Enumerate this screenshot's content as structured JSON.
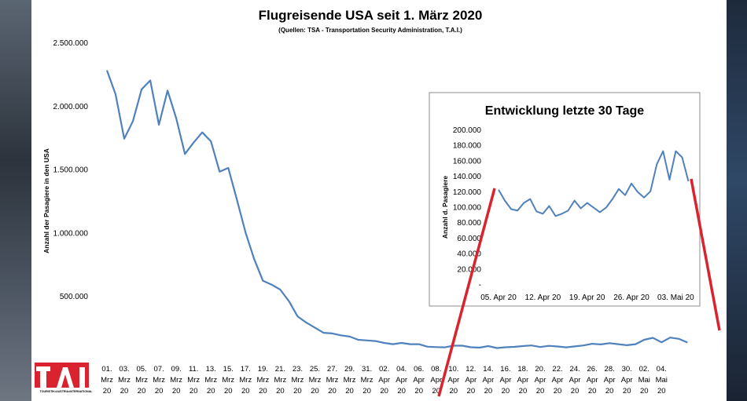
{
  "colors": {
    "line": "#4f81bd",
    "connector": "#d9232e",
    "logo": "#d9232e"
  },
  "logo": {
    "text": "TOURISTIK•AUSTRIA•INTERNATIONAL",
    "icon": "tai-logo"
  },
  "chart_data": [
    {
      "type": "line",
      "title": "Flugreisende USA seit 1. März 2020",
      "subtitle": "(Quellen: TSA - Transportation Security Administration, T.A.I.)",
      "ylabel": "Anzahl der Pasagiere  in den USA",
      "xlabel": "",
      "ylim": [
        0,
        2500000
      ],
      "yticks": [
        500000,
        1000000,
        1500000,
        2000000,
        2500000
      ],
      "ytick_labels": [
        "500.000",
        "1.000.000",
        "1.500.000",
        "2.000.000",
        "2.500.000"
      ],
      "x_tick_labels": [
        [
          "01.",
          "Mrz",
          "20"
        ],
        [
          "03.",
          "Mrz",
          "20"
        ],
        [
          "05.",
          "Mrz",
          "20"
        ],
        [
          "07.",
          "Mrz",
          "20"
        ],
        [
          "09.",
          "Mrz",
          "20"
        ],
        [
          "11.",
          "Mrz",
          "20"
        ],
        [
          "13.",
          "Mrz",
          "20"
        ],
        [
          "15.",
          "Mrz",
          "20"
        ],
        [
          "17.",
          "Mrz",
          "20"
        ],
        [
          "19.",
          "Mrz",
          "20"
        ],
        [
          "21.",
          "Mrz",
          "20"
        ],
        [
          "23.",
          "Mrz",
          "20"
        ],
        [
          "25.",
          "Mrz",
          "20"
        ],
        [
          "27.",
          "Mrz",
          "20"
        ],
        [
          "29.",
          "Mrz",
          "20"
        ],
        [
          "31.",
          "Mrz",
          "20"
        ],
        [
          "02.",
          "Apr",
          "20"
        ],
        [
          "04.",
          "Apr",
          "20"
        ],
        [
          "06.",
          "Apr",
          "20"
        ],
        [
          "08.",
          "Apr",
          "20"
        ],
        [
          "10.",
          "Apr",
          "20"
        ],
        [
          "12.",
          "Apr",
          "20"
        ],
        [
          "14.",
          "Apr",
          "20"
        ],
        [
          "16.",
          "Apr",
          "20"
        ],
        [
          "18.",
          "Apr",
          "20"
        ],
        [
          "20.",
          "Apr",
          "20"
        ],
        [
          "22.",
          "Apr",
          "20"
        ],
        [
          "24.",
          "Apr",
          "20"
        ],
        [
          "26.",
          "Apr",
          "20"
        ],
        [
          "28.",
          "Apr",
          "20"
        ],
        [
          "30.",
          "Apr",
          "20"
        ],
        [
          "02.",
          "Mai",
          "20"
        ],
        [
          "04.",
          "Mai",
          "20"
        ]
      ],
      "x_start": "2020-03-01",
      "series": [
        {
          "values": [
            2280000,
            2090000,
            1740000,
            1880000,
            2130000,
            2200000,
            1850000,
            2120000,
            1900000,
            1620000,
            1710000,
            1790000,
            1720000,
            1480000,
            1510000,
            1260000,
            1000000,
            790000,
            620000,
            590000,
            550000,
            460000,
            340000,
            290000,
            250000,
            210000,
            205000,
            190000,
            180000,
            155000,
            150000,
            145000,
            130000,
            120000,
            130000,
            120000,
            120000,
            100000,
            97000,
            95000,
            108000,
            108000,
            96000,
            93000,
            105000,
            90000,
            96000,
            99000,
            105000,
            110000,
            98000,
            107000,
            102000,
            95000,
            103000,
            110000,
            123000,
            118000,
            128000,
            120000,
            112000,
            120000,
            155000,
            170000,
            135000,
            172000,
            162000,
            133000
          ]
        }
      ]
    },
    {
      "type": "line",
      "title": "Entwicklung letzte 30 Tage",
      "ylabel": "Anzahl d. Pasagiere",
      "xlabel": "",
      "ylim": [
        0,
        200000
      ],
      "yticks": [
        0,
        20000,
        40000,
        60000,
        80000,
        100000,
        120000,
        140000,
        160000,
        180000,
        200000
      ],
      "ytick_labels": [
        "-",
        "20.000",
        "40.000",
        "60.000",
        "80.000",
        "100.000",
        "120.000",
        "140.000",
        "160.000",
        "180.000",
        "200.000"
      ],
      "x_tick_labels": [
        "05. Apr 20",
        "12. Apr 20",
        "19. Apr 20",
        "26. Apr 20",
        "03. Mai 20"
      ],
      "x_start": "2020-04-05",
      "series": [
        {
          "values": [
            122000,
            108000,
            97000,
            95000,
            105000,
            110000,
            94000,
            91000,
            101000,
            88000,
            91000,
            95000,
            108000,
            98000,
            105000,
            99000,
            93000,
            99000,
            110000,
            123000,
            115000,
            130000,
            119000,
            112000,
            120000,
            155000,
            172000,
            135000,
            172000,
            164000,
            133000
          ]
        }
      ]
    }
  ]
}
